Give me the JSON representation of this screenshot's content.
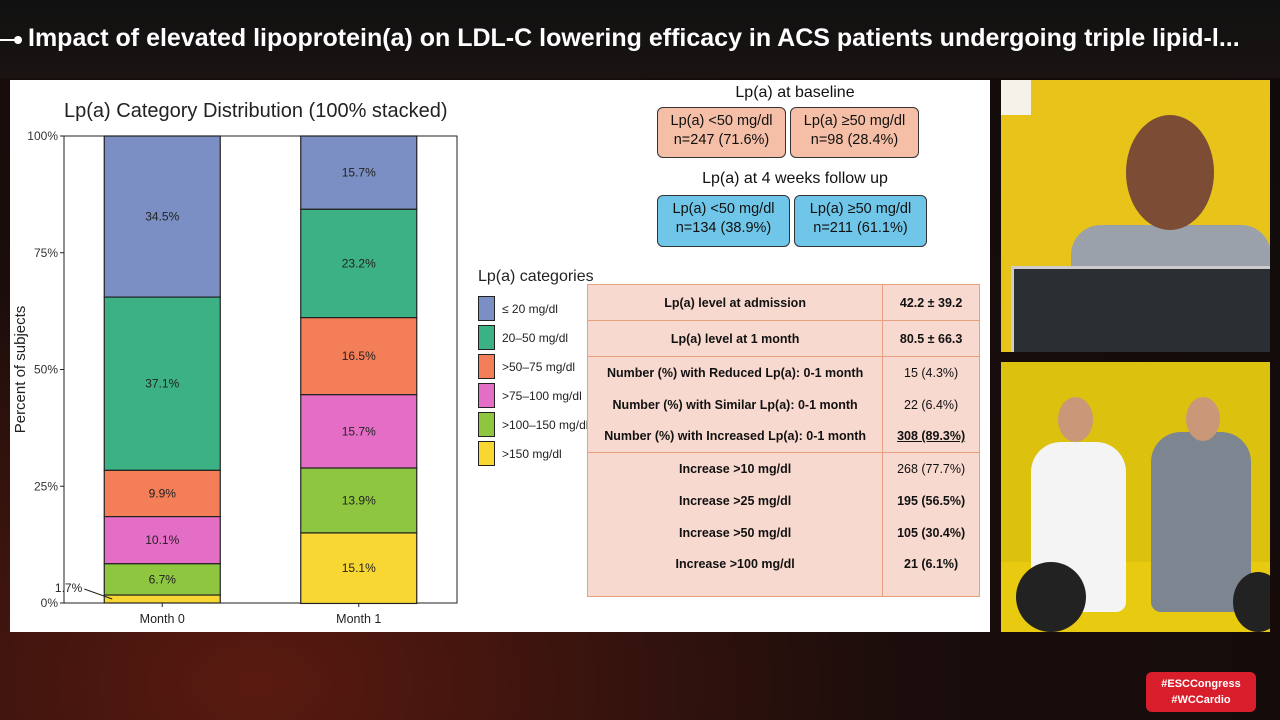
{
  "header": {
    "title": "Impact of elevated lipoprotein(a) on LDL-C lowering efficacy in ACS patients undergoing triple lipid-l..."
  },
  "chart_data": {
    "type": "bar",
    "stacked": true,
    "title": "Lp(a) Category Distribution (100% stacked)",
    "xlabel": "",
    "ylabel": "Percent of subjects",
    "ylim": [
      0,
      100
    ],
    "yticks": [
      "0%",
      "25%",
      "50%",
      "75%",
      "100%"
    ],
    "categories": [
      "Month 0",
      "Month 1"
    ],
    "legend_title": "Lp(a) categories",
    "legend_position": "right",
    "series": [
      {
        "name": "≤ 20 mg/dl",
        "color": "#7b8fc4",
        "values": [
          34.5,
          15.7
        ]
      },
      {
        "name": "20–50 mg/dl",
        "color": "#3cb184",
        "values": [
          37.1,
          23.2
        ]
      },
      {
        "name": ">50–75 mg/dl",
        "color": "#f47e58",
        "values": [
          9.9,
          16.5
        ]
      },
      {
        "name": ">75–100 mg/dl",
        "color": "#e46dc6",
        "values": [
          10.1,
          15.7
        ]
      },
      {
        "name": ">100–150 mg/dl",
        "color": "#8ec63f",
        "values": [
          6.7,
          13.9
        ]
      },
      {
        "name": ">150 mg/dl",
        "color": "#f8d732",
        "values": [
          1.7,
          15.1
        ]
      }
    ],
    "data_labels": [
      [
        "34.5%",
        "37.1%",
        "9.9%",
        "10.1%",
        "6.7%",
        "1.7%"
      ],
      [
        "15.7%",
        "23.2%",
        "16.5%",
        "15.7%",
        "13.9%",
        "15.1%"
      ]
    ]
  },
  "baseline": {
    "heading": "Lp(a) at baseline",
    "low": {
      "line1": "Lp(a) <50 mg/dl",
      "line2": "n=247 (71.6%)"
    },
    "high": {
      "line1": "Lp(a) ≥50 mg/dl",
      "line2": "n=98 (28.4%)"
    }
  },
  "followup": {
    "heading": "Lp(a) at 4 weeks follow up",
    "low": {
      "line1": "Lp(a) <50 mg/dl",
      "line2": "n=134 (38.9%)"
    },
    "high": {
      "line1": "Lp(a) ≥50 mg/dl",
      "line2": "n=211 (61.1%)"
    }
  },
  "stats_table": {
    "rows": [
      {
        "label": "Lp(a) level at admission",
        "value": "42.2 ± 39.2"
      },
      {
        "label": "Lp(a) level at 1 month",
        "value": "80.5 ± 66.3"
      },
      {
        "label": "Number (%) with Reduced Lp(a): 0-1 month",
        "value": "15 (4.3%)"
      },
      {
        "label": "Number (%) with Similar Lp(a): 0-1 month",
        "value": "22 (6.4%)"
      },
      {
        "label": "Number (%) with Increased Lp(a): 0-1 month",
        "value": "308 (89.3%)"
      },
      {
        "label": "Increase >10 mg/dl",
        "value": "268 (77.7%)"
      },
      {
        "label": "Increase >25 mg/dl",
        "value": "195 (56.5%)"
      },
      {
        "label": "Increase >50 mg/dl",
        "value": "105 (30.4%)"
      },
      {
        "label": "Increase >100 mg/dl",
        "value": "21 (6.1%)"
      }
    ]
  },
  "hashtags": {
    "line1": "#ESCCongress",
    "line2": "#WCCardio"
  }
}
